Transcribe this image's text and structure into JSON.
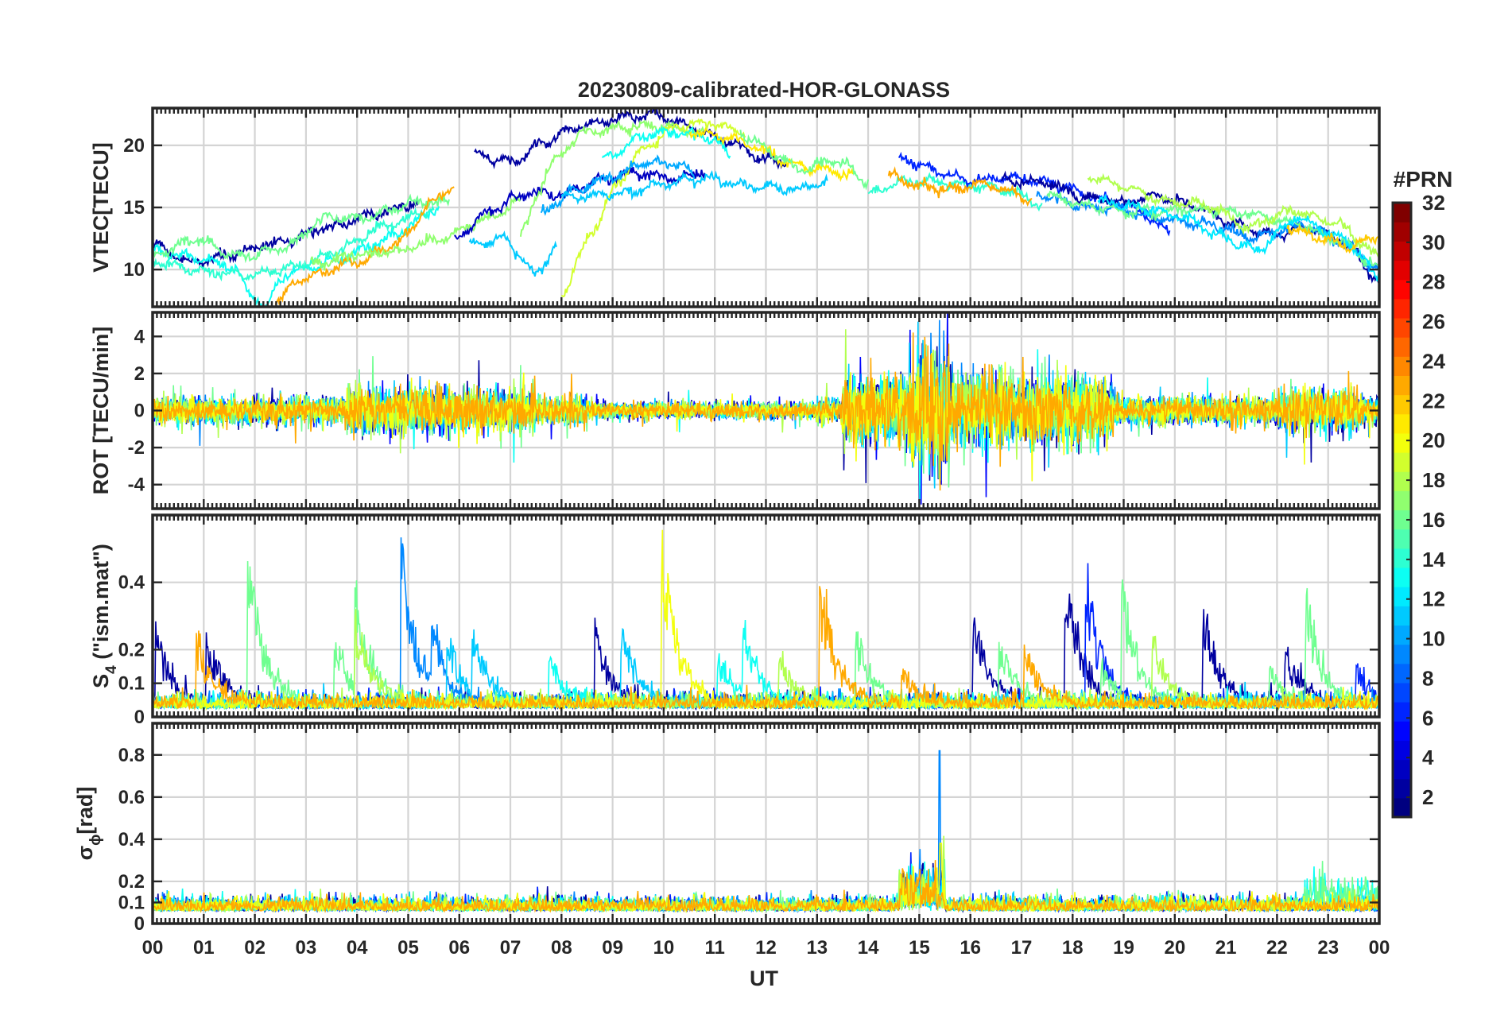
{
  "chart_data": {
    "type": "line",
    "title": "20230809-calibrated-HOR-GLONASS",
    "xlabel": "UT",
    "xlim": [
      0,
      24
    ],
    "x_ticks": [
      "00",
      "01",
      "02",
      "03",
      "04",
      "05",
      "06",
      "07",
      "08",
      "09",
      "10",
      "11",
      "12",
      "13",
      "14",
      "15",
      "16",
      "17",
      "18",
      "19",
      "20",
      "21",
      "22",
      "23",
      "00"
    ],
    "panels": [
      {
        "id": "vtec",
        "ylabel": "VTEC[TECU]",
        "ylim": [
          7,
          23
        ],
        "yticks": [
          10,
          15,
          20
        ],
        "ytick_labels": [
          "10",
          "15",
          "20"
        ]
      },
      {
        "id": "rot",
        "ylabel": "ROT [TECU/min]",
        "ylim": [
          -5.3,
          5.3
        ],
        "yticks": [
          -4,
          -2,
          0,
          2,
          4
        ],
        "ytick_labels": [
          "-4",
          "-2",
          "0",
          "2",
          "4"
        ]
      },
      {
        "id": "s4",
        "ylabel_main": "S",
        "ylabel_sub": "4",
        "ylabel_rest": " (\"ism.mat\")",
        "ylim": [
          0,
          0.6
        ],
        "yticks": [
          0,
          0.1,
          0.2,
          0.4
        ],
        "ytick_labels": [
          "0",
          "0.1",
          "0.2",
          "0.4"
        ]
      },
      {
        "id": "sigphi",
        "ylabel_main": "σ",
        "ylabel_sub": "ϕ",
        "ylabel_rest": "[rad]",
        "ylim": [
          0,
          0.95
        ],
        "yticks": [
          0,
          0.1,
          0.2,
          0.4,
          0.6,
          0.8
        ],
        "ytick_labels": [
          "0",
          "0.1",
          "0.2",
          "0.4",
          "0.6",
          "0.8"
        ]
      }
    ],
    "colorbar": {
      "title": "#PRN",
      "range": [
        1,
        32
      ],
      "ticks": [
        2,
        4,
        6,
        8,
        10,
        12,
        14,
        16,
        18,
        20,
        22,
        24,
        26,
        28,
        30,
        32
      ],
      "tick_labels": [
        "2",
        "4",
        "6",
        "8",
        "10",
        "12",
        "14",
        "16",
        "18",
        "20",
        "22",
        "24",
        "26",
        "28",
        "30",
        "32"
      ],
      "colormap": "jet"
    },
    "vtec_series": [
      {
        "prn": 2,
        "points": [
          [
            0,
            12
          ],
          [
            0.8,
            10.5
          ],
          [
            1.5,
            11.2
          ],
          [
            2.5,
            12.2
          ],
          [
            3.5,
            13.5
          ],
          [
            4.5,
            14.6
          ],
          [
            5.2,
            15.5
          ]
        ]
      },
      {
        "prn": 13,
        "points": [
          [
            0,
            11.5
          ],
          [
            0.8,
            11
          ],
          [
            1.6,
            10.2
          ],
          [
            1.9,
            8
          ],
          [
            2.2,
            7
          ],
          [
            2.6,
            9.7
          ],
          [
            3.6,
            10.7
          ],
          [
            4.6,
            12.5
          ],
          [
            5.6,
            15
          ]
        ]
      },
      {
        "prn": 16,
        "points": [
          [
            0,
            11.2
          ],
          [
            0.8,
            12.4
          ],
          [
            1.7,
            11
          ],
          [
            2.6,
            11.8
          ],
          [
            3.4,
            14.2
          ],
          [
            4.2,
            14.2
          ],
          [
            5.2,
            15.5
          ],
          [
            5.8,
            15.3
          ]
        ]
      },
      {
        "prn": 14,
        "points": [
          [
            0,
            10.8
          ],
          [
            0.8,
            10
          ],
          [
            1.8,
            9.5
          ],
          [
            2.8,
            10.2
          ],
          [
            3.6,
            11.4
          ],
          [
            4.5,
            13.4
          ],
          [
            5.5,
            14.8
          ]
        ]
      },
      {
        "prn": 23,
        "points": [
          [
            2.4,
            7.4
          ],
          [
            2.9,
            9.2
          ],
          [
            3.9,
            10.5
          ],
          [
            4.8,
            12.2
          ],
          [
            5.5,
            15.5
          ],
          [
            5.9,
            16.8
          ]
        ]
      },
      {
        "prn": 17,
        "points": [
          [
            3.1,
            10.4
          ],
          [
            4,
            11.2
          ],
          [
            4.8,
            11.5
          ],
          [
            5.6,
            12.5
          ],
          [
            6.5,
            14
          ],
          [
            7.2,
            15.5
          ]
        ]
      },
      {
        "prn": 3,
        "points": [
          [
            5.9,
            12.2
          ],
          [
            6.5,
            14.5
          ],
          [
            7.3,
            16.2
          ],
          [
            8,
            16
          ],
          [
            8.7,
            17.2
          ],
          [
            9.5,
            17.8
          ],
          [
            10.2,
            17.3
          ],
          [
            10.8,
            17.8
          ]
        ]
      },
      {
        "prn": 2,
        "points": [
          [
            6.3,
            19.3
          ],
          [
            7,
            18.7
          ],
          [
            7.7,
            20.3
          ],
          [
            8.4,
            21.6
          ],
          [
            9.2,
            22.2
          ],
          [
            9.8,
            22.5
          ],
          [
            10.5,
            21.5
          ],
          [
            11.2,
            20.4
          ],
          [
            11.9,
            19.1
          ],
          [
            12.4,
            18.5
          ]
        ]
      },
      {
        "prn": 11,
        "points": [
          [
            6.2,
            12
          ],
          [
            6.9,
            12.5
          ],
          [
            7.5,
            9.5
          ],
          [
            7.9,
            12
          ]
        ]
      },
      {
        "prn": 17,
        "points": [
          [
            7.2,
            12.8
          ],
          [
            7.8,
            18.5
          ],
          [
            8.4,
            21
          ],
          [
            9.2,
            21.5
          ],
          [
            10,
            21.5
          ],
          [
            10.8,
            21
          ]
        ]
      },
      {
        "prn": 19,
        "points": [
          [
            8,
            8
          ],
          [
            8.6,
            13
          ],
          [
            9.1,
            17
          ],
          [
            9.6,
            19.8
          ],
          [
            10.3,
            21.6
          ],
          [
            10.9,
            21.8
          ],
          [
            11.6,
            21
          ]
        ]
      },
      {
        "prn": 13,
        "points": [
          [
            8.8,
            18.8
          ],
          [
            9.6,
            20.8
          ],
          [
            10.3,
            21.1
          ],
          [
            11,
            20.5
          ],
          [
            11.3,
            19
          ]
        ]
      },
      {
        "prn": 10,
        "points": [
          [
            7.6,
            14.5
          ],
          [
            8.2,
            16.2
          ],
          [
            9,
            17.5
          ],
          [
            9.6,
            18.5
          ],
          [
            10.3,
            18.5
          ],
          [
            10.6,
            17.5
          ]
        ]
      },
      {
        "prn": 11,
        "points": [
          [
            8,
            15.8
          ],
          [
            9.2,
            16.1
          ],
          [
            10.2,
            17.1
          ],
          [
            10.8,
            17.4
          ],
          [
            11.6,
            16.8
          ],
          [
            12.6,
            16.5
          ],
          [
            13.2,
            17
          ]
        ]
      },
      {
        "prn": 21,
        "points": [
          [
            10.5,
            21.1
          ],
          [
            11.1,
            20.8
          ],
          [
            11.8,
            19.9
          ],
          [
            12.5,
            18.5
          ],
          [
            13.2,
            18
          ],
          [
            13.7,
            17.6
          ]
        ]
      },
      {
        "prn": 16,
        "points": [
          [
            11.5,
            21
          ],
          [
            12.2,
            19.3
          ],
          [
            12.6,
            18
          ],
          [
            13.4,
            18.8
          ],
          [
            14,
            17
          ]
        ]
      },
      {
        "prn": 14,
        "points": [
          [
            14,
            16
          ],
          [
            14.6,
            17
          ],
          [
            15.3,
            17.1
          ],
          [
            16,
            16.8
          ],
          [
            16.8,
            16.3
          ],
          [
            17.4,
            15.2
          ]
        ]
      },
      {
        "prn": 6,
        "points": [
          [
            14.6,
            19
          ],
          [
            15.3,
            18
          ],
          [
            16,
            17.2
          ],
          [
            16.8,
            17.4
          ],
          [
            17.6,
            17
          ],
          [
            18.4,
            15.8
          ],
          [
            19.2,
            15
          ],
          [
            19.9,
            13
          ]
        ]
      },
      {
        "prn": 23,
        "points": [
          [
            14.4,
            17.5
          ],
          [
            15.1,
            16.6
          ],
          [
            15.7,
            16.5
          ],
          [
            16.2,
            17
          ],
          [
            16.8,
            16.2
          ],
          [
            17.2,
            15.6
          ]
        ]
      },
      {
        "prn": 2,
        "points": [
          [
            16.6,
            17.2
          ],
          [
            17.5,
            17
          ],
          [
            18.2,
            15.8
          ],
          [
            19,
            15.4
          ],
          [
            19.6,
            16
          ],
          [
            20.4,
            15.1
          ],
          [
            21.2,
            13.6
          ],
          [
            22,
            12.7
          ],
          [
            22.6,
            13.5
          ],
          [
            23.3,
            12.2
          ],
          [
            24,
            9
          ]
        ]
      },
      {
        "prn": 9,
        "points": [
          [
            17.3,
            16.1
          ],
          [
            18,
            15.2
          ],
          [
            18.8,
            14.9
          ],
          [
            19.7,
            14.1
          ],
          [
            20.7,
            13.6
          ],
          [
            21.5,
            12.6
          ],
          [
            22.5,
            13.5
          ],
          [
            23.3,
            12.2
          ],
          [
            24,
            10
          ]
        ]
      },
      {
        "prn": 16,
        "points": [
          [
            17.5,
            16
          ],
          [
            18.3,
            15.1
          ],
          [
            19.3,
            14.6
          ],
          [
            20.3,
            14.8
          ],
          [
            21.3,
            14.6
          ],
          [
            22.3,
            13.8
          ],
          [
            23.3,
            12.2
          ],
          [
            24,
            10
          ]
        ]
      },
      {
        "prn": 18,
        "points": [
          [
            18.3,
            17.5
          ],
          [
            19,
            16.7
          ],
          [
            19.8,
            15.5
          ],
          [
            20.7,
            15.2
          ],
          [
            21.4,
            13.4
          ],
          [
            22.3,
            14.8
          ],
          [
            23.2,
            13.6
          ],
          [
            24,
            11
          ]
        ]
      },
      {
        "prn": 12,
        "points": [
          [
            18.5,
            15.4
          ],
          [
            19.3,
            15
          ],
          [
            20.2,
            14.2
          ],
          [
            21,
            12.5
          ],
          [
            21.6,
            11.5
          ],
          [
            22.4,
            14.2
          ],
          [
            23.3,
            12.4
          ],
          [
            24,
            9.5
          ]
        ]
      },
      {
        "prn": 22,
        "points": [
          [
            22.2,
            13.4
          ],
          [
            22.8,
            12.6
          ],
          [
            23.4,
            11.8
          ],
          [
            24,
            12.7
          ]
        ]
      }
    ]
  }
}
